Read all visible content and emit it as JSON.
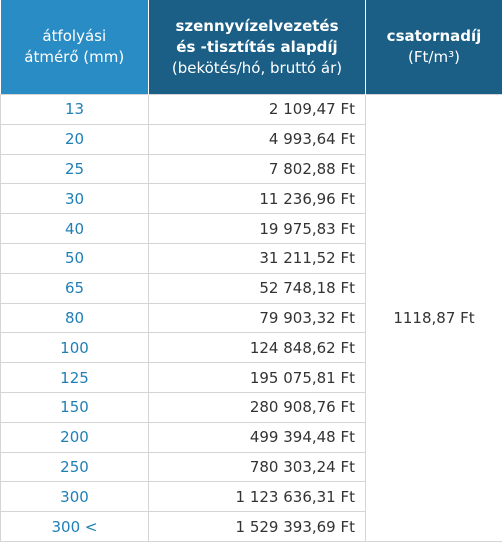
{
  "header": {
    "columns": [
      {
        "lines": [
          "átfolyási",
          "átmérő (mm)"
        ]
      },
      {
        "title_lines": [
          "szennyvízelvezetés",
          "és -tisztítás alapdíj"
        ],
        "subtitle": "(bekötés/hó, bruttó ár)"
      },
      {
        "title": "csatornadíj",
        "subtitle": "(Ft/m³)"
      }
    ]
  },
  "table": {
    "rows": [
      [
        "13",
        "2 109,47 Ft"
      ],
      [
        "20",
        "4 993,64 Ft"
      ],
      [
        "25",
        "7 802,88 Ft"
      ],
      [
        "30",
        "11 236,96 Ft"
      ],
      [
        "40",
        "19 975,83 Ft"
      ],
      [
        "50",
        "31 211,52 Ft"
      ],
      [
        "65",
        "52 748,18 Ft"
      ],
      [
        "80",
        "79 903,32 Ft"
      ],
      [
        "100",
        "124 848,62 Ft"
      ],
      [
        "125",
        "195 075,81 Ft"
      ],
      [
        "150",
        "280 908,76 Ft"
      ],
      [
        "200",
        "499 394,48 Ft"
      ],
      [
        "250",
        "780 303,24 Ft"
      ],
      [
        "300",
        "1 123 636,31 Ft"
      ],
      [
        "300 <",
        "1 529 393,69 Ft"
      ]
    ],
    "merged_fee": "1118,87 Ft"
  }
}
